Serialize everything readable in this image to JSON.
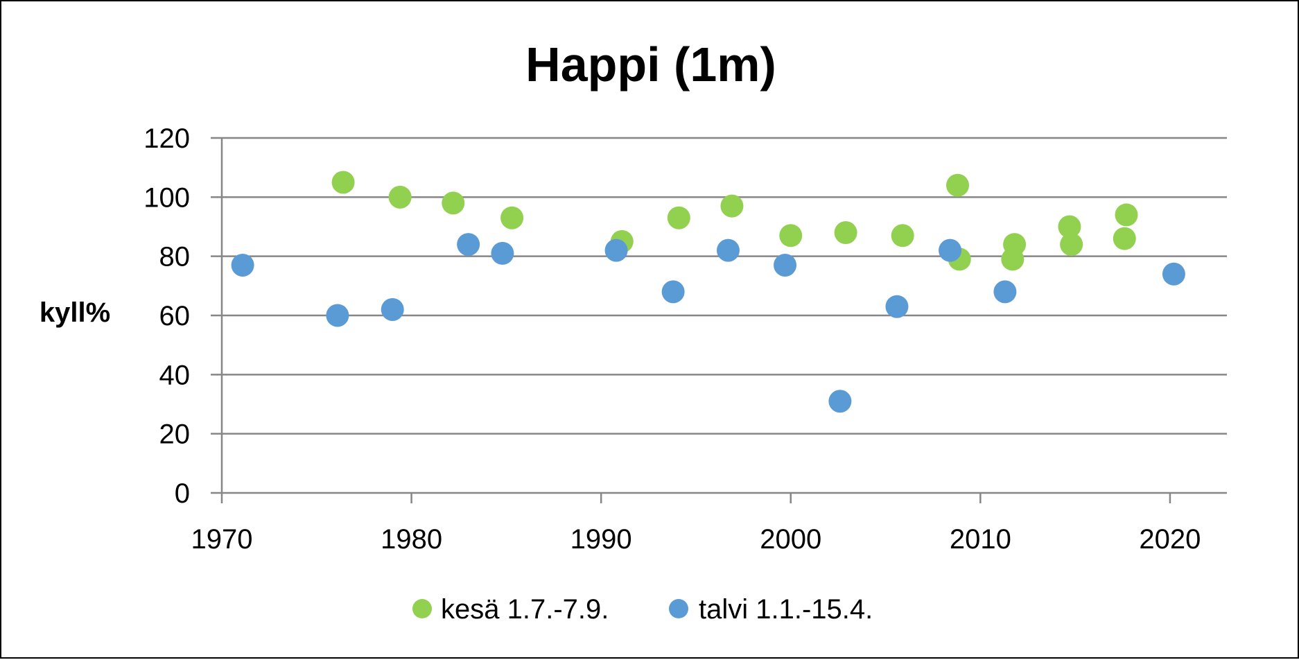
{
  "chart_data": {
    "type": "scatter",
    "title": "Happi (1m)",
    "xlabel": "",
    "ylabel": "kyll%",
    "xlim": [
      1970,
      2023
    ],
    "ylim": [
      0,
      120
    ],
    "xticks": [
      1970,
      1980,
      1990,
      2000,
      2010,
      2020
    ],
    "yticks": [
      0,
      20,
      40,
      60,
      80,
      100,
      120
    ],
    "grid": "horizontal",
    "legend": "bottom",
    "series": [
      {
        "name": "kesä 1.7.-7.9.",
        "color": "#92D050",
        "points": [
          [
            1976.4,
            105
          ],
          [
            1979.4,
            100
          ],
          [
            1982.2,
            98
          ],
          [
            1985.3,
            93
          ],
          [
            1991.1,
            85
          ],
          [
            1994.1,
            93
          ],
          [
            1996.9,
            97
          ],
          [
            2000.0,
            87
          ],
          [
            2002.9,
            88
          ],
          [
            2005.9,
            87
          ],
          [
            2008.8,
            104
          ],
          [
            2008.9,
            79
          ],
          [
            2011.7,
            79
          ],
          [
            2011.8,
            84
          ],
          [
            2014.7,
            90
          ],
          [
            2014.8,
            84
          ],
          [
            2017.7,
            94
          ],
          [
            2017.6,
            86
          ]
        ]
      },
      {
        "name": "talvi 1.1.-15.4.",
        "color": "#5B9BD5",
        "points": [
          [
            1971.1,
            77
          ],
          [
            1976.1,
            60
          ],
          [
            1979.0,
            62
          ],
          [
            1983.0,
            84
          ],
          [
            1984.8,
            81
          ],
          [
            1990.8,
            82
          ],
          [
            1993.8,
            68
          ],
          [
            1996.7,
            82
          ],
          [
            1999.7,
            77
          ],
          [
            2002.6,
            31
          ],
          [
            2005.6,
            63
          ],
          [
            2008.4,
            82
          ],
          [
            2011.3,
            68
          ],
          [
            2020.2,
            74
          ]
        ]
      }
    ]
  }
}
